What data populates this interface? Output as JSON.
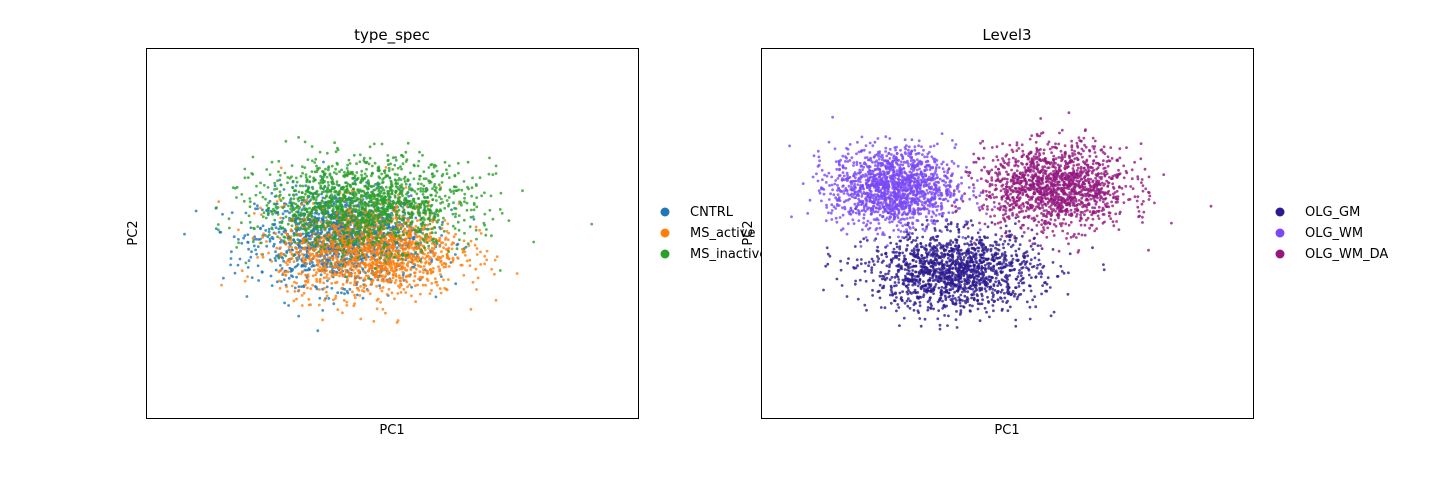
{
  "chart_data": [
    {
      "type": "scatter",
      "title": "type_spec",
      "xlabel": "PC1",
      "ylabel": "PC2",
      "xticks": false,
      "yticks": false,
      "grid": false,
      "legend_position": "right",
      "series": [
        {
          "name": "CNTRL",
          "color": "#1f77b4",
          "cluster": {
            "center": [
              -0.35,
              -0.3
            ],
            "spread": [
              1.5,
              1.0
            ]
          }
        },
        {
          "name": "MS_active",
          "color": "#ff7f0e",
          "cluster": {
            "center": [
              0.2,
              -0.6
            ],
            "spread": [
              1.6,
              1.0
            ]
          }
        },
        {
          "name": "MS_inactive",
          "color": "#2ca02c",
          "cluster": {
            "center": [
              0.1,
              0.5
            ],
            "spread": [
              1.9,
              0.95
            ]
          }
        }
      ],
      "xlim": [
        -4.2,
        5.5
      ],
      "ylim": [
        -4.6,
        4.2
      ]
    },
    {
      "type": "scatter",
      "title": "Level3",
      "xlabel": "PC1",
      "ylabel": "PC2",
      "xticks": false,
      "yticks": false,
      "grid": false,
      "legend_position": "right",
      "series": [
        {
          "name": "OLG_GM",
          "color": "#2e1a8e",
          "cluster": {
            "center": [
              -0.4,
              -1.1
            ],
            "spread": [
              1.5,
              0.85
            ]
          }
        },
        {
          "name": "OLG_WM",
          "color": "#7b48f5",
          "cluster": {
            "center": [
              -1.6,
              0.9
            ],
            "spread": [
              1.1,
              0.85
            ]
          }
        },
        {
          "name": "OLG_WM_DA",
          "color": "#93197f",
          "cluster": {
            "center": [
              1.6,
              0.9
            ],
            "spread": [
              1.3,
              0.9
            ]
          }
        }
      ],
      "xlim": [
        -4.2,
        5.5
      ],
      "ylim": [
        -4.6,
        4.2
      ]
    }
  ]
}
